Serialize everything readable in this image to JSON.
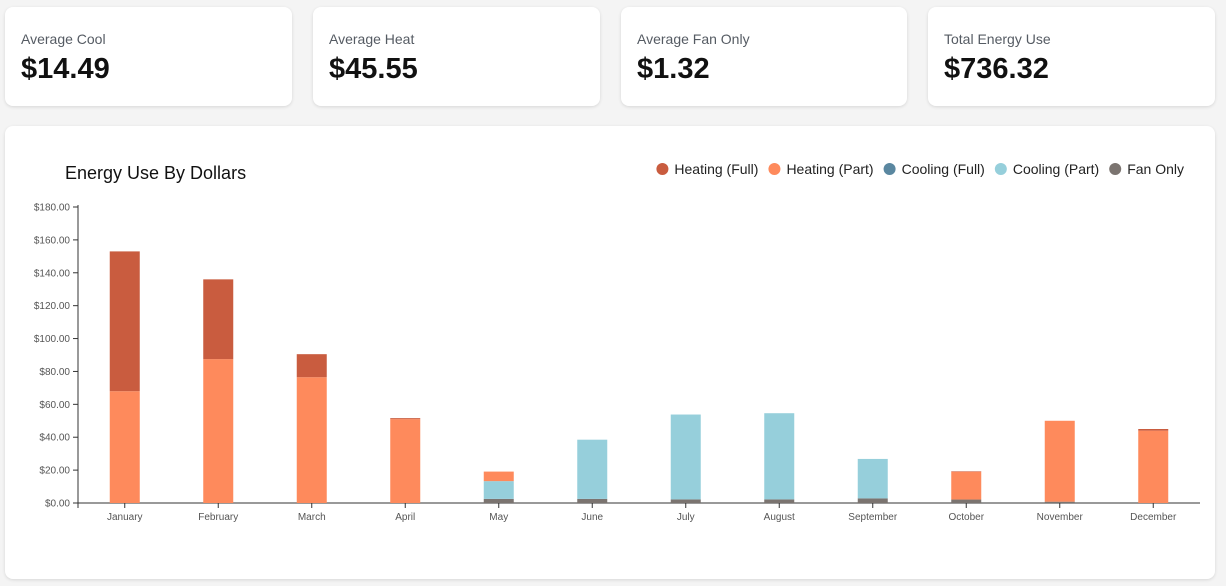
{
  "stats": [
    {
      "label": "Average Cool",
      "value": "$14.49"
    },
    {
      "label": "Average Heat",
      "value": "$45.55"
    },
    {
      "label": "Average Fan Only",
      "value": "$1.32"
    },
    {
      "label": "Total Energy Use",
      "value": "$736.32"
    }
  ],
  "chart_data": {
    "type": "bar",
    "stacked": true,
    "title": "Energy Use By Dollars",
    "xlabel": "",
    "ylabel": "",
    "ylim": [
      0,
      180
    ],
    "y_ticks": [
      "$0.00",
      "$20.00",
      "$40.00",
      "$60.00",
      "$80.00",
      "$100.00",
      "$120.00",
      "$140.00",
      "$160.00",
      "$180.00"
    ],
    "categories": [
      "January",
      "February",
      "March",
      "April",
      "May",
      "June",
      "July",
      "August",
      "September",
      "October",
      "November",
      "December"
    ],
    "series": [
      {
        "name": "Fan Only",
        "color": "#7b7470",
        "values": [
          0,
          0,
          0,
          0,
          2.5,
          2.5,
          2.2,
          2.2,
          2.8,
          2.1,
          0.8,
          0
        ]
      },
      {
        "name": "Cooling (Full)",
        "color": "#5a87a0",
        "values": [
          0,
          0,
          0,
          0,
          0,
          0,
          0,
          0,
          0,
          0,
          0,
          0
        ]
      },
      {
        "name": "Cooling (Part)",
        "color": "#96cfdb",
        "values": [
          0,
          0,
          0,
          0,
          10.8,
          36,
          51.6,
          52.4,
          24,
          0,
          0,
          0
        ]
      },
      {
        "name": "Heating (Part)",
        "color": "#fe8a5c",
        "values": [
          68,
          87.5,
          76.5,
          51,
          5.8,
          0,
          0,
          0,
          0,
          16.9,
          49.2,
          44
        ]
      },
      {
        "name": "Heating (Full)",
        "color": "#c95c3f",
        "values": [
          85,
          48.5,
          14,
          0.6,
          0,
          0,
          0,
          0,
          0,
          0.3,
          0,
          1
        ]
      }
    ],
    "legend": [
      "Heating (Full)",
      "Heating (Part)",
      "Cooling (Full)",
      "Cooling (Part)",
      "Fan Only"
    ],
    "legend_position": "top-right",
    "grid": false
  }
}
